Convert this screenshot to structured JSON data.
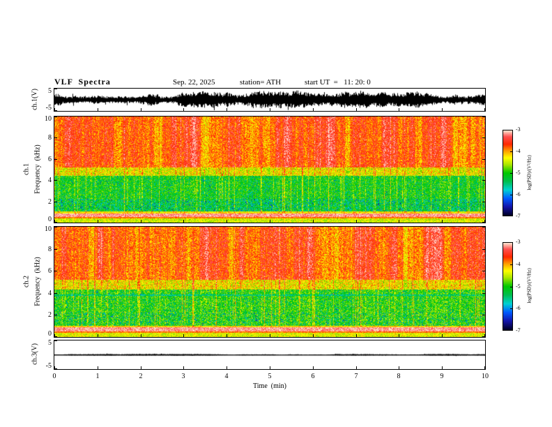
{
  "header": {
    "title": "VLF  Spectra",
    "date": "Sep. 22, 2025",
    "station": "station= ATH",
    "start_ut": "start UT  =   11: 20: 0"
  },
  "x_axis": {
    "label": "Time  (min)",
    "ticks": [
      "0",
      "1",
      "2",
      "3",
      "4",
      "5",
      "6",
      "7",
      "8",
      "9",
      "10"
    ],
    "range": [
      0,
      10
    ]
  },
  "panels": {
    "ch1_wave": {
      "ylabel": "ch.1(V)",
      "yticks": [
        "5",
        "-5"
      ],
      "yrange": [
        -5,
        5
      ]
    },
    "ch1_spec": {
      "ylabel_channel": "ch.1",
      "ylabel_axis": "Frequency  (kHz)",
      "yticks": [
        "10",
        "8",
        "6",
        "4",
        "2",
        "0"
      ],
      "yrange": [
        0,
        10
      ]
    },
    "ch2_spec": {
      "ylabel_channel": "ch.2",
      "ylabel_axis": "Frequency  (kHz)",
      "yticks": [
        "10",
        "8",
        "6",
        "4",
        "2",
        "0"
      ],
      "yrange": [
        0,
        10
      ]
    },
    "ch3_wave": {
      "ylabel": "ch.3(V)",
      "yticks": [
        "5",
        "-5"
      ],
      "yrange": [
        -5,
        5
      ]
    }
  },
  "colorbar": {
    "label": "log(PSD)/(V²/Hz)",
    "ticks": [
      "-3",
      "-4",
      "-5",
      "-6",
      "-7"
    ],
    "range": [
      -7,
      -3
    ],
    "stops": [
      {
        "t": 0.0,
        "color": "#000028"
      },
      {
        "t": 0.1,
        "color": "#1414aa"
      },
      {
        "t": 0.2,
        "color": "#005aff"
      },
      {
        "t": 0.3,
        "color": "#00d2d2"
      },
      {
        "t": 0.4,
        "color": "#00be50"
      },
      {
        "t": 0.5,
        "color": "#00c800"
      },
      {
        "t": 0.6,
        "color": "#aae600"
      },
      {
        "t": 0.68,
        "color": "#ffff00"
      },
      {
        "t": 0.76,
        "color": "#ffa000"
      },
      {
        "t": 0.84,
        "color": "#ff2800"
      },
      {
        "t": 0.93,
        "color": "#ff5050"
      },
      {
        "t": 1.0,
        "color": "#ffe1cd"
      }
    ]
  },
  "chart_data": [
    {
      "id": "ch1-waveform",
      "type": "line",
      "title": "ch.1 time series",
      "xlabel": "Time (min)",
      "ylabel": "ch.1(V)",
      "xlim": [
        0,
        10
      ],
      "ylim": [
        -5,
        5
      ],
      "summary": "dense black broadband noise centered on 0 V, typical peak amplitude ±2 to ±3 V, occasional bursts near ±4.5 V, continuous for the full 10 minutes",
      "render": {
        "seed": 11,
        "base_amp_v": 1.3,
        "var_amp_v": 1.5
      }
    },
    {
      "id": "ch1-spectrogram",
      "type": "heatmap",
      "title": "ch.1 dynamic spectrum",
      "xlabel": "Time (min)",
      "ylabel": "Frequency (kHz)",
      "zlabel": "log(PSD)/(V²/Hz)",
      "xlim": [
        0,
        10
      ],
      "ylim": [
        0,
        10
      ],
      "zlim": [
        -7,
        -3
      ],
      "grid": false,
      "bands": [
        {
          "f": [
            5.2,
            10
          ],
          "base": -3.72,
          "noise": 0.4
        },
        {
          "f": [
            4.4,
            5.2
          ],
          "base": -4.35,
          "noise": 0.5
        },
        {
          "f": [
            2.2,
            4.4
          ],
          "base": -5.1,
          "noise": 0.5,
          "sp": 0.04
        },
        {
          "f": [
            1.05,
            2.2
          ],
          "base": -5.25,
          "noise": 0.55,
          "sp": 0.1
        },
        {
          "f": [
            0.85,
            1.05
          ],
          "base": -4.25,
          "noise": 0.35
        },
        {
          "f": [
            0.5,
            0.85
          ],
          "base": -3.15,
          "noise": 0.22
        },
        {
          "f": [
            0.35,
            0.5
          ],
          "base": -3.85,
          "noise": 0.2
        },
        {
          "f": [
            0.0,
            0.35
          ],
          "base": -4.45,
          "noise": 0.35
        }
      ],
      "features": "red high-power band 5-10 kHz with vertical streaks, yellow transition 4.4-5.2 kHz, green band 1-4.4 kHz with repeated yellow vertical sferic stripes and cyan speckle, bright pale band below 1 kHz with a red line near 0.4 kHz",
      "render": {
        "seed": 23,
        "stripe_rate": 0.1,
        "stripe_gain": 1.05
      }
    },
    {
      "id": "ch2-spectrogram",
      "type": "heatmap",
      "title": "ch.2 dynamic spectrum",
      "xlabel": "Time (min)",
      "ylabel": "Frequency (kHz)",
      "zlabel": "log(PSD)/(V²/Hz)",
      "xlim": [
        0,
        10
      ],
      "ylim": [
        0,
        10
      ],
      "zlim": [
        -7,
        -3
      ],
      "grid": false,
      "bands": [
        {
          "f": [
            5.2,
            10
          ],
          "base": -3.72,
          "noise": 0.42
        },
        {
          "f": [
            4.3,
            5.2
          ],
          "base": -4.3,
          "noise": 0.5
        },
        {
          "f": [
            3.72,
            3.88
          ],
          "base": -5.55,
          "noise": 0.35
        },
        {
          "f": [
            2.2,
            4.3
          ],
          "base": -5.0,
          "noise": 0.55,
          "sp": 0.05
        },
        {
          "f": [
            1.0,
            2.2
          ],
          "base": -5.05,
          "noise": 0.6,
          "sp": 0.08
        },
        {
          "f": [
            0.85,
            1.0
          ],
          "base": -4.2,
          "noise": 0.35
        },
        {
          "f": [
            0.5,
            0.85
          ],
          "base": -3.15,
          "noise": 0.2
        },
        {
          "f": [
            0.35,
            0.5
          ],
          "base": -3.85,
          "noise": 0.2
        },
        {
          "f": [
            0.0,
            0.35
          ],
          "base": -4.4,
          "noise": 0.35
        }
      ],
      "features": "similar to ch.1 but with denser yellow vertical stripes below 5 kHz, a darker horizontal line near 3.8 kHz and brighter 1-2 kHz band",
      "render": {
        "seed": 57,
        "stripe_rate": 0.13,
        "stripe_gain": 1.15
      }
    },
    {
      "id": "ch3-waveform",
      "type": "line",
      "title": "ch.3 time series",
      "xlabel": "Time (min)",
      "ylabel": "ch.3(V)",
      "xlim": [
        0,
        10
      ],
      "ylim": [
        -5,
        5
      ],
      "summary": "flat quiescent trace at 0 V (no signal) for the full 10 minutes",
      "render": {
        "seed": 7,
        "base_amp_v": 0.1,
        "var_amp_v": 0.08
      }
    }
  ]
}
